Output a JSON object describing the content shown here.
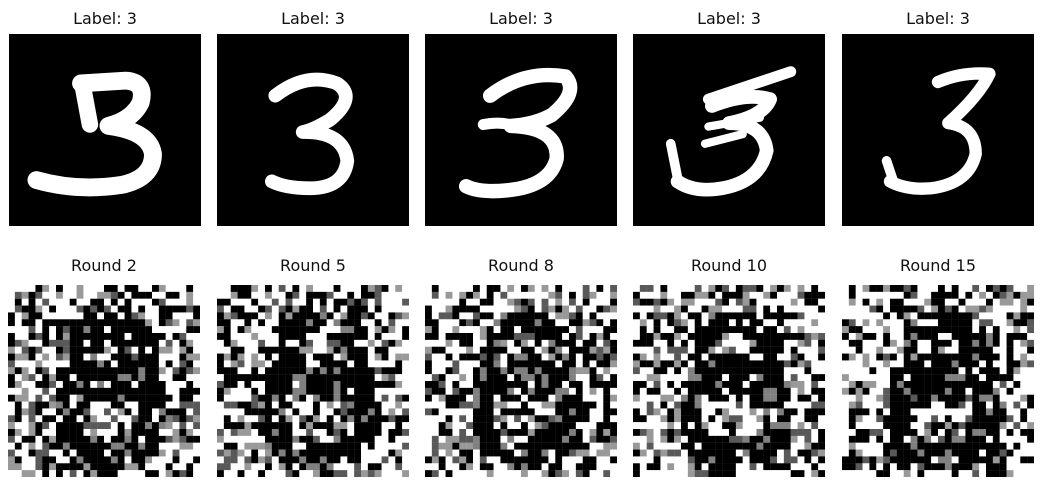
{
  "top_row": [
    {
      "title": "Label: 3"
    },
    {
      "title": "Label: 3"
    },
    {
      "title": "Label: 3"
    },
    {
      "title": "Label: 3"
    },
    {
      "title": "Label: 3"
    }
  ],
  "bottom_row": [
    {
      "title": "Round 2"
    },
    {
      "title": "Round 5"
    },
    {
      "title": "Round 8"
    },
    {
      "title": "Round 10"
    },
    {
      "title": "Round 15"
    }
  ]
}
